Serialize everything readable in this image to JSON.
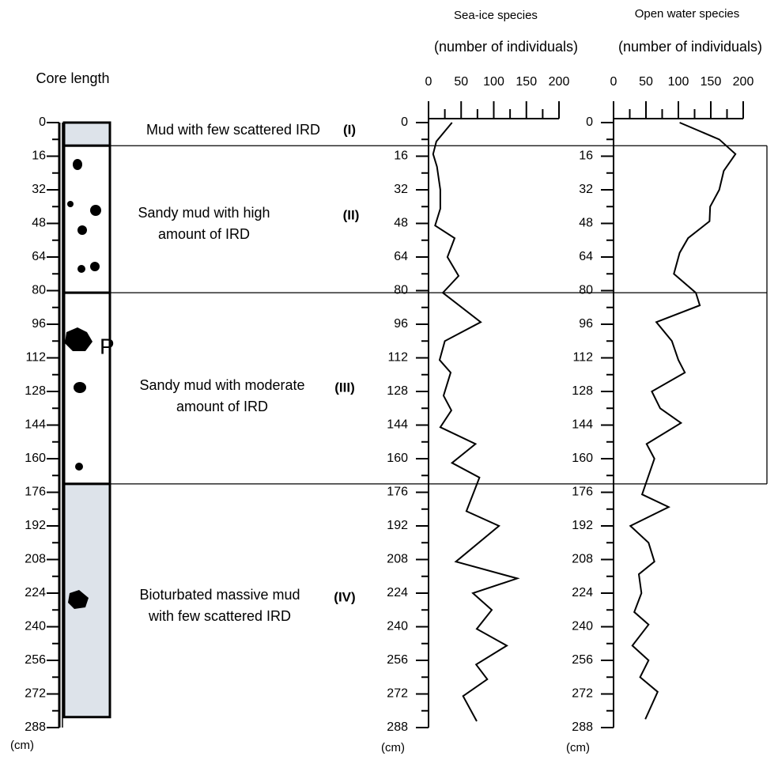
{
  "chart_data": [
    {
      "type": "core_log",
      "ylabel": "Core length",
      "yunit": "(cm)",
      "ylim": [
        0,
        288
      ],
      "yticks": [
        0,
        16,
        32,
        48,
        64,
        80,
        96,
        112,
        128,
        144,
        160,
        176,
        192,
        208,
        224,
        240,
        256,
        272,
        288
      ],
      "yminorticks": [
        8,
        24,
        40,
        56,
        72,
        88,
        104,
        120,
        136,
        152,
        168,
        184,
        200,
        216,
        232,
        248,
        264,
        280
      ],
      "units": [
        {
          "description": [
            "Mud with few scattered IRD"
          ],
          "label": "(I)",
          "top": 0,
          "bottom": 11,
          "color": "#dde3ea"
        },
        {
          "description": [
            "Sandy mud with high",
            "amount of IRD"
          ],
          "label": "(II)",
          "top": 11,
          "bottom": 81,
          "color": "#ffffff"
        },
        {
          "description": [
            "Sandy mud with moderate",
            "amount of IRD"
          ],
          "label": "(III)",
          "top": 81,
          "bottom": 172,
          "color": "#ffffff"
        },
        {
          "description": [
            "Bioturbated massive mud",
            "with few scattered IRD"
          ],
          "label": "(IV)",
          "top": 172,
          "bottom": 283,
          "color": "#dde3ea"
        }
      ],
      "annotation": "P"
    },
    {
      "type": "line",
      "title": "Sea-ice species",
      "subtitle": "(number of individuals)",
      "yunit": "(cm)",
      "color": "#000000",
      "xlim": [
        0,
        200
      ],
      "xticks": [
        0,
        50,
        100,
        150,
        200
      ],
      "xminorticks": [
        25,
        75,
        125,
        175
      ],
      "ylim": [
        0,
        288
      ],
      "yticks": [
        0,
        16,
        32,
        48,
        64,
        80,
        96,
        112,
        128,
        144,
        160,
        176,
        192,
        208,
        224,
        240,
        256,
        272,
        288
      ],
      "yminorticks": [
        8,
        24,
        40,
        56,
        72,
        88,
        104,
        120,
        136,
        152,
        168,
        184,
        200,
        216,
        232,
        248,
        264,
        280
      ],
      "depth": [
        0,
        9,
        15,
        21,
        32,
        41,
        49,
        55,
        64,
        73,
        81,
        95,
        104,
        113,
        119,
        130,
        137,
        145,
        153,
        162,
        169,
        185,
        192,
        209,
        217,
        224,
        232,
        241,
        249,
        258,
        265,
        273,
        285
      ],
      "values": [
        36,
        12,
        7,
        13,
        18,
        18,
        10,
        40,
        29,
        46,
        22,
        80,
        25,
        17,
        34,
        23,
        35,
        18,
        72,
        36,
        78,
        58,
        108,
        42,
        136,
        68,
        97,
        74,
        120,
        73,
        90,
        53,
        74
      ]
    },
    {
      "type": "line",
      "title": "Open water species",
      "subtitle": "(number of individuals)",
      "yunit": "(cm)",
      "color": "#000000",
      "xlim": [
        0,
        200
      ],
      "xticks": [
        0,
        50,
        100,
        150,
        200
      ],
      "xminorticks": [
        25,
        75,
        125,
        175
      ],
      "ylim": [
        0,
        288
      ],
      "yticks": [
        0,
        16,
        32,
        48,
        64,
        80,
        96,
        112,
        128,
        144,
        160,
        176,
        192,
        208,
        224,
        240,
        256,
        272,
        288
      ],
      "yminorticks": [
        8,
        24,
        40,
        56,
        72,
        88,
        104,
        120,
        136,
        152,
        168,
        184,
        200,
        216,
        232,
        248,
        264,
        280
      ],
      "depth": [
        0,
        8,
        15,
        23,
        32,
        40,
        47,
        55,
        62,
        72,
        81,
        87,
        95,
        104,
        113,
        119,
        128,
        136,
        143,
        153,
        160,
        177,
        183,
        192,
        200,
        209,
        215,
        224,
        233,
        239,
        249,
        256,
        264,
        271,
        284
      ],
      "values": [
        102,
        163,
        188,
        170,
        163,
        149,
        148,
        115,
        102,
        93,
        127,
        133,
        66,
        90,
        100,
        110,
        59,
        72,
        104,
        51,
        63,
        44,
        85,
        26,
        54,
        63,
        39,
        43,
        32,
        54,
        29,
        54,
        41,
        68,
        49
      ]
    }
  ]
}
